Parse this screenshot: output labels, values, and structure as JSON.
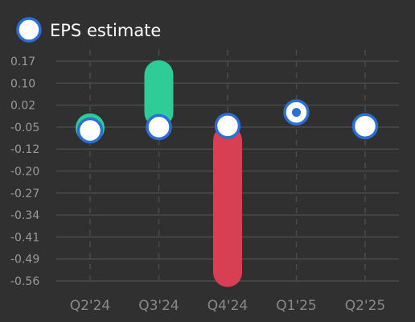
{
  "chart_data": {
    "type": "scatter",
    "title": "",
    "xlabel": "",
    "ylabel": "",
    "legend": {
      "label": "EPS estimate",
      "placement": "top-left"
    },
    "categories": [
      "Q2'24",
      "Q3'24",
      "Q4'24",
      "Q1'25",
      "Q2'25"
    ],
    "y_ticks": [
      "0.17",
      "0.10",
      "0.02",
      "-0.05",
      "-0.12",
      "-0.20",
      "-0.27",
      "-0.34",
      "-0.41",
      "-0.49",
      "-0.56"
    ],
    "ylim": [
      -0.56,
      0.17
    ],
    "grid": true,
    "series": [
      {
        "name": "EPS estimate",
        "values": [
          -0.06,
          -0.049,
          -0.045,
          0.0,
          -0.046
        ]
      }
    ],
    "actuals": [
      -0.043,
      0.173,
      -0.58,
      null,
      null
    ],
    "colors": {
      "background": "#303030",
      "beat": "#2ecc96",
      "miss": "#d93f52",
      "marker_fill": "#ffffff",
      "marker_stroke": "#2a6fd6",
      "grid": "#4a4a4a"
    }
  }
}
